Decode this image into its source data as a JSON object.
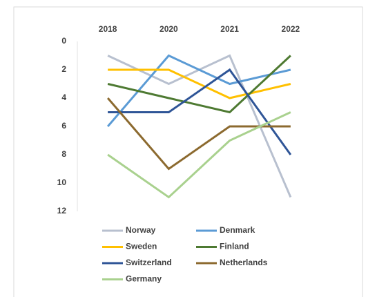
{
  "chart_data": {
    "type": "line",
    "categories": [
      "2018",
      "2020",
      "2021",
      "2022"
    ],
    "series": [
      {
        "name": "Norway",
        "color": "#b8c0cf",
        "values": [
          1,
          3,
          1,
          11
        ]
      },
      {
        "name": "Denmark",
        "color": "#5b9bd5",
        "values": [
          6,
          1,
          3,
          2
        ]
      },
      {
        "name": "Sweden",
        "color": "#ffc000",
        "values": [
          2,
          2,
          4,
          3
        ]
      },
      {
        "name": "Finland",
        "color": "#4e7a32",
        "values": [
          3,
          4,
          5,
          1
        ]
      },
      {
        "name": "Switzerland",
        "color": "#2f5597",
        "values": [
          5,
          5,
          2,
          8
        ]
      },
      {
        "name": "Netherlands",
        "color": "#8c6a2f",
        "values": [
          4,
          9,
          6,
          6
        ]
      },
      {
        "name": "Germany",
        "color": "#a9d18e",
        "values": [
          8,
          11,
          7,
          5
        ]
      }
    ],
    "ylim": [
      0,
      12
    ],
    "yticks": [
      0,
      2,
      4,
      6,
      8,
      10,
      12
    ],
    "y_inverted": true,
    "x_axis_position": "top",
    "legend": "bottom",
    "grid": false
  }
}
